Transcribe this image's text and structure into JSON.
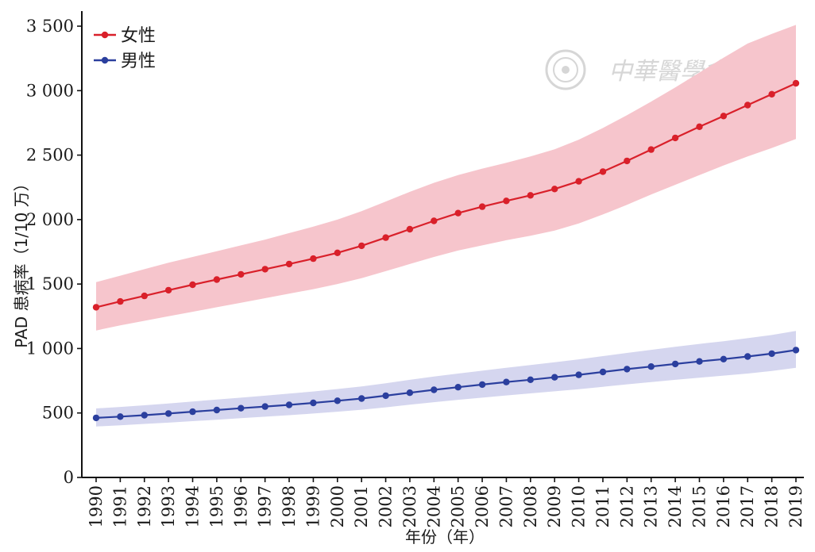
{
  "chart_data": {
    "type": "line",
    "title": "",
    "xlabel": "年份（年）",
    "ylabel": "PAD 患病率（1/10 万）",
    "ylim": [
      0,
      3500
    ],
    "yticks": [
      0,
      500,
      1000,
      1500,
      2000,
      2500,
      3000,
      3500
    ],
    "ytick_labels": [
      "0",
      "500",
      "1 000",
      "1 500",
      "2 000",
      "2 500",
      "3 000",
      "3 500"
    ],
    "x": [
      1990,
      1991,
      1992,
      1993,
      1994,
      1995,
      1996,
      1997,
      1998,
      1999,
      2000,
      2001,
      2002,
      2003,
      2004,
      2005,
      2006,
      2007,
      2008,
      2009,
      2010,
      2011,
      2012,
      2013,
      2014,
      2015,
      2016,
      2017,
      2018,
      2019
    ],
    "grid": false,
    "legend_position": "top-left",
    "series": [
      {
        "name": "女性",
        "color": "#d9202a",
        "band_color": "#f6c5cc",
        "values": [
          1320,
          1365,
          1408,
          1452,
          1495,
          1535,
          1575,
          1615,
          1655,
          1697,
          1742,
          1797,
          1860,
          1925,
          1990,
          2050,
          2100,
          2145,
          2188,
          2237,
          2297,
          2372,
          2455,
          2543,
          2633,
          2720,
          2803,
          2888,
          2972,
          3057
        ],
        "lower": [
          1140,
          1180,
          1215,
          1250,
          1285,
          1320,
          1355,
          1390,
          1425,
          1460,
          1500,
          1545,
          1600,
          1655,
          1710,
          1760,
          1800,
          1840,
          1875,
          1915,
          1970,
          2040,
          2115,
          2195,
          2270,
          2345,
          2420,
          2490,
          2555,
          2625
        ],
        "upper": [
          1515,
          1565,
          1615,
          1665,
          1710,
          1755,
          1800,
          1845,
          1895,
          1945,
          2000,
          2065,
          2140,
          2215,
          2285,
          2345,
          2395,
          2440,
          2490,
          2545,
          2620,
          2710,
          2810,
          2915,
          3025,
          3140,
          3255,
          3365,
          3440,
          3510
        ]
      },
      {
        "name": "男性",
        "color": "#2b3f9e",
        "band_color": "#d5d6ef",
        "values": [
          462,
          472,
          483,
          496,
          510,
          523,
          537,
          550,
          563,
          578,
          595,
          612,
          634,
          657,
          680,
          700,
          720,
          740,
          758,
          777,
          796,
          818,
          840,
          860,
          880,
          900,
          918,
          938,
          960,
          988
        ],
        "lower": [
          395,
          405,
          415,
          425,
          437,
          448,
          460,
          471,
          483,
          496,
          510,
          525,
          544,
          564,
          584,
          602,
          619,
          636,
          652,
          668,
          684,
          703,
          722,
          740,
          757,
          774,
          790,
          806,
          826,
          850
        ],
        "upper": [
          535,
          547,
          560,
          574,
          589,
          604,
          619,
          634,
          650,
          667,
          686,
          706,
          731,
          757,
          783,
          806,
          828,
          851,
          872,
          894,
          916,
          941,
          966,
          990,
          1013,
          1036,
          1057,
          1080,
          1105,
          1136
        ]
      }
    ]
  },
  "watermark": {
    "seal_icon": "seal-icon",
    "text": "中華醫學會"
  }
}
